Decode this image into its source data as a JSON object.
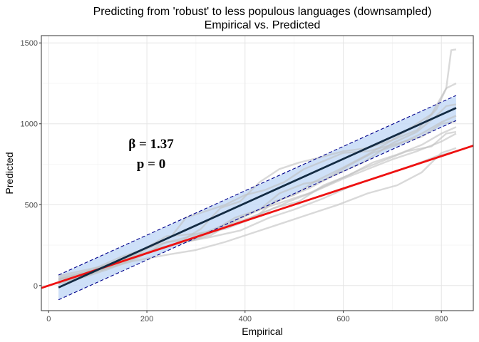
{
  "chart_data": {
    "type": "line",
    "title_line1": "Predicting from 'robust' to less populous languages (downsampled)",
    "title_line2": "Empirical vs. Predicted",
    "xlabel": "Empirical",
    "ylabel": "Predicted",
    "xlim": [
      -15,
      865
    ],
    "ylim": [
      -155,
      1545
    ],
    "x_ticks": [
      0,
      200,
      400,
      600,
      800
    ],
    "y_ticks": [
      0,
      500,
      1000,
      1500
    ],
    "grid": true,
    "annotation_beta": "β = 1.37",
    "annotation_p": "p = 0",
    "colors": {
      "individual": "#bfbfbf",
      "fit_line": "#132b43",
      "band_fill": "#c6dbf7",
      "bound": "#00008b",
      "identity": "#ee1111"
    },
    "fit": {
      "x": [
        20,
        830
      ],
      "y": [
        -12,
        1098
      ]
    },
    "upper_bound": {
      "x": [
        20,
        830
      ],
      "y": [
        65,
        1175
      ]
    },
    "lower_bound": {
      "x": [
        20,
        830
      ],
      "y": [
        -88,
        1020
      ]
    },
    "reference_line": {
      "x": [
        -15,
        865
      ],
      "y": [
        -15,
        865
      ]
    },
    "individual_series": [
      {
        "x": [
          20,
          80,
          150,
          210,
          250,
          280,
          330,
          360,
          400,
          440,
          480,
          520,
          560,
          600,
          650,
          700,
          760,
          800,
          830
        ],
        "y": [
          20,
          70,
          155,
          240,
          305,
          420,
          470,
          500,
          560,
          590,
          640,
          720,
          770,
          820,
          830,
          870,
          920,
          1000,
          1015
        ]
      },
      {
        "x": [
          20,
          80,
          130,
          190,
          240,
          300,
          360,
          420,
          460,
          500,
          540,
          600,
          650,
          700,
          740,
          780,
          810,
          830
        ],
        "y": [
          20,
          70,
          130,
          220,
          305,
          320,
          350,
          420,
          520,
          560,
          640,
          730,
          810,
          900,
          980,
          1060,
          1220,
          1250
        ]
      },
      {
        "x": [
          20,
          100,
          160,
          220,
          280,
          330,
          380,
          430,
          480,
          530,
          580,
          640,
          700,
          750,
          790,
          810,
          830
        ],
        "y": [
          40,
          90,
          150,
          230,
          270,
          310,
          400,
          470,
          540,
          600,
          680,
          760,
          880,
          950,
          1050,
          1110,
          1120
        ]
      },
      {
        "x": [
          20,
          70,
          120,
          180,
          240,
          290,
          330,
          380,
          430,
          470,
          520,
          560,
          610,
          660,
          710,
          760,
          800,
          830
        ],
        "y": [
          10,
          50,
          100,
          170,
          270,
          280,
          330,
          420,
          470,
          570,
          630,
          650,
          740,
          820,
          870,
          940,
          1010,
          1050
        ]
      },
      {
        "x": [
          20,
          90,
          150,
          220,
          270,
          320,
          370,
          420,
          480,
          530,
          580,
          630,
          680,
          730,
          780,
          810,
          830
        ],
        "y": [
          35,
          100,
          180,
          250,
          290,
          330,
          390,
          460,
          520,
          570,
          640,
          710,
          770,
          830,
          860,
          940,
          950
        ]
      },
      {
        "x": [
          20,
          100,
          160,
          220,
          270,
          330,
          390,
          450,
          500,
          560,
          620,
          680,
          740,
          790,
          830
        ],
        "y": [
          50,
          100,
          160,
          220,
          265,
          300,
          340,
          420,
          470,
          540,
          620,
          680,
          740,
          800,
          830
        ]
      },
      {
        "x": [
          20,
          100,
          170,
          240,
          300,
          360,
          420,
          480,
          530,
          590,
          650,
          710,
          760,
          800,
          830
        ],
        "y": [
          40,
          90,
          150,
          190,
          220,
          270,
          330,
          390,
          440,
          500,
          570,
          620,
          700,
          820,
          850
        ]
      },
      {
        "x": [
          20,
          80,
          140,
          200,
          260,
          310,
          350,
          390,
          430,
          470,
          510,
          550,
          600,
          650,
          700,
          750,
          790,
          810,
          820,
          830
        ],
        "y": [
          30,
          80,
          140,
          200,
          260,
          350,
          480,
          520,
          640,
          720,
          760,
          790,
          830,
          850,
          900,
          960,
          1090,
          1220,
          1455,
          1460
        ]
      },
      {
        "x": [
          20,
          90,
          160,
          230,
          290,
          350,
          410,
          460,
          510,
          560,
          610,
          660,
          710,
          760,
          800,
          830
        ],
        "y": [
          15,
          75,
          160,
          230,
          290,
          360,
          420,
          480,
          520,
          620,
          680,
          760,
          810,
          870,
          940,
          980
        ]
      },
      {
        "x": [
          20,
          110,
          180,
          250,
          310,
          370,
          430,
          490,
          540,
          600,
          650,
          700,
          750,
          800,
          830
        ],
        "y": [
          60,
          120,
          190,
          250,
          300,
          370,
          440,
          520,
          580,
          660,
          720,
          780,
          830,
          890,
          940
        ]
      }
    ]
  }
}
